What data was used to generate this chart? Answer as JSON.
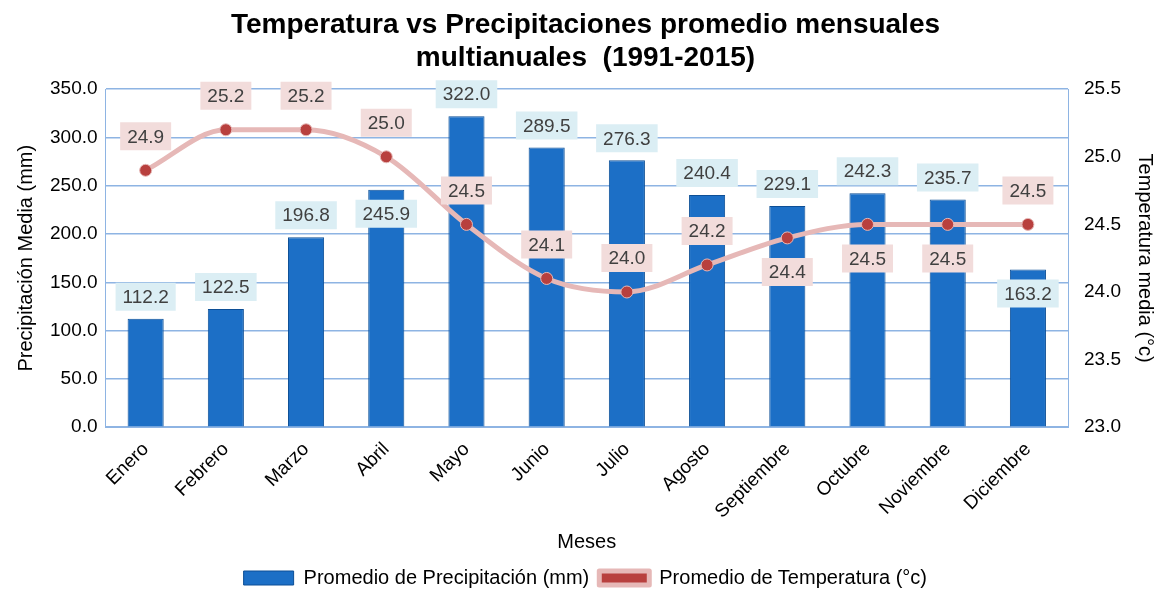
{
  "chart_data": {
    "type": "bar",
    "title": "Temperatura vs Precipitaciones promedio mensuales multianuales  (1991-2015)",
    "xlabel": "Meses",
    "ylabel": "Precipitación Media (mm)",
    "y2label": "Temperatura media (°c)",
    "categories": [
      "Enero",
      "Febrero",
      "Marzo",
      "Abril",
      "Mayo",
      "Junio",
      "Julio",
      "Agosto",
      "Septiembre",
      "Octubre",
      "Noviembre",
      "Diciembre"
    ],
    "series": [
      {
        "name": "Promedio de Precipitación (mm)",
        "color": "#1c6fc6",
        "values": [
          112.2,
          122.5,
          196.8,
          245.9,
          322.0,
          289.5,
          276.3,
          240.4,
          229.1,
          242.3,
          235.7,
          163.2
        ],
        "value_labels": [
          "112.2",
          "122.5",
          "196.8",
          "245.9",
          "322.0",
          "289.5",
          "276.3",
          "240.4",
          "229.1",
          "242.3",
          "235.7",
          "163.2"
        ]
      },
      {
        "name": "Promedio de Temperatura (°c)",
        "type": "line",
        "axis": "y2",
        "color": "#e6b8b7",
        "values": [
          24.9,
          25.2,
          25.2,
          25.0,
          24.5,
          24.1,
          24.0,
          24.2,
          24.4,
          24.5,
          24.5,
          24.5
        ],
        "value_labels": [
          "24.9",
          "25.2",
          "25.2",
          "25.0",
          "24.5",
          "24.1",
          "24.0",
          "24.2",
          "24.4",
          "24.5",
          "24.5",
          "24.5"
        ]
      }
    ],
    "ylim": [
      0,
      350
    ],
    "yticks": [
      {
        "value": 0,
        "label": "0.0"
      },
      {
        "value": 50,
        "label": "50.0"
      },
      {
        "value": 100,
        "label": "100.0"
      },
      {
        "value": 150,
        "label": "150.0"
      },
      {
        "value": 200,
        "label": "200.0"
      },
      {
        "value": 250,
        "label": "250.0"
      },
      {
        "value": 300,
        "label": "300.0"
      },
      {
        "value": 350,
        "label": "350.0"
      }
    ],
    "y2lim": [
      23,
      25.5
    ],
    "y2ticks": [
      {
        "value": 23,
        "label": "23.0"
      },
      {
        "value": 23.5,
        "label": "23.5"
      },
      {
        "value": 24,
        "label": "24.0"
      },
      {
        "value": 24.5,
        "label": "24.5"
      },
      {
        "value": 25,
        "label": "25.0"
      },
      {
        "value": 25.5,
        "label": "25.5"
      }
    ],
    "grid": "y",
    "legend": "bottom",
    "marker": "circle"
  }
}
